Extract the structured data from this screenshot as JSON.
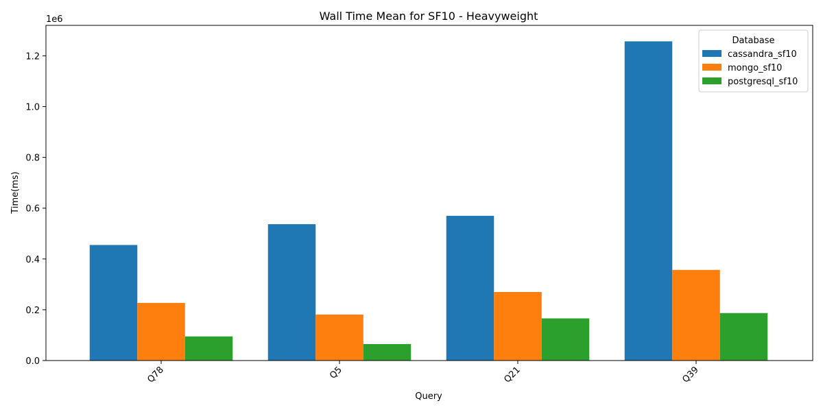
{
  "chart_data": {
    "type": "bar",
    "title": "Wall Time Mean for SF10 - Heavyweight",
    "xlabel": "Query",
    "ylabel": "Time(ms)",
    "y_scale_label": "1e6",
    "categories": [
      "Q78",
      "Q5",
      "Q21",
      "Q39"
    ],
    "ylim": [
      0,
      1320000
    ],
    "y_ticks": [
      0,
      200000,
      400000,
      600000,
      800000,
      1000000,
      1200000
    ],
    "y_tick_labels": [
      "0.0",
      "0.2",
      "0.4",
      "0.6",
      "0.8",
      "1.0",
      "1.2"
    ],
    "legend_title": "Database",
    "legend_position": "top-right",
    "grid": false,
    "series": [
      {
        "name": "cassandra_sf10",
        "color": "#1f77b4",
        "values": [
          455000,
          537000,
          570000,
          1257000
        ]
      },
      {
        "name": "mongo_sf10",
        "color": "#ff7f0e",
        "values": [
          227000,
          181000,
          270000,
          357000
        ]
      },
      {
        "name": "postgresql_sf10",
        "color": "#2ca02c",
        "values": [
          95000,
          65000,
          166000,
          187000
        ]
      }
    ]
  }
}
